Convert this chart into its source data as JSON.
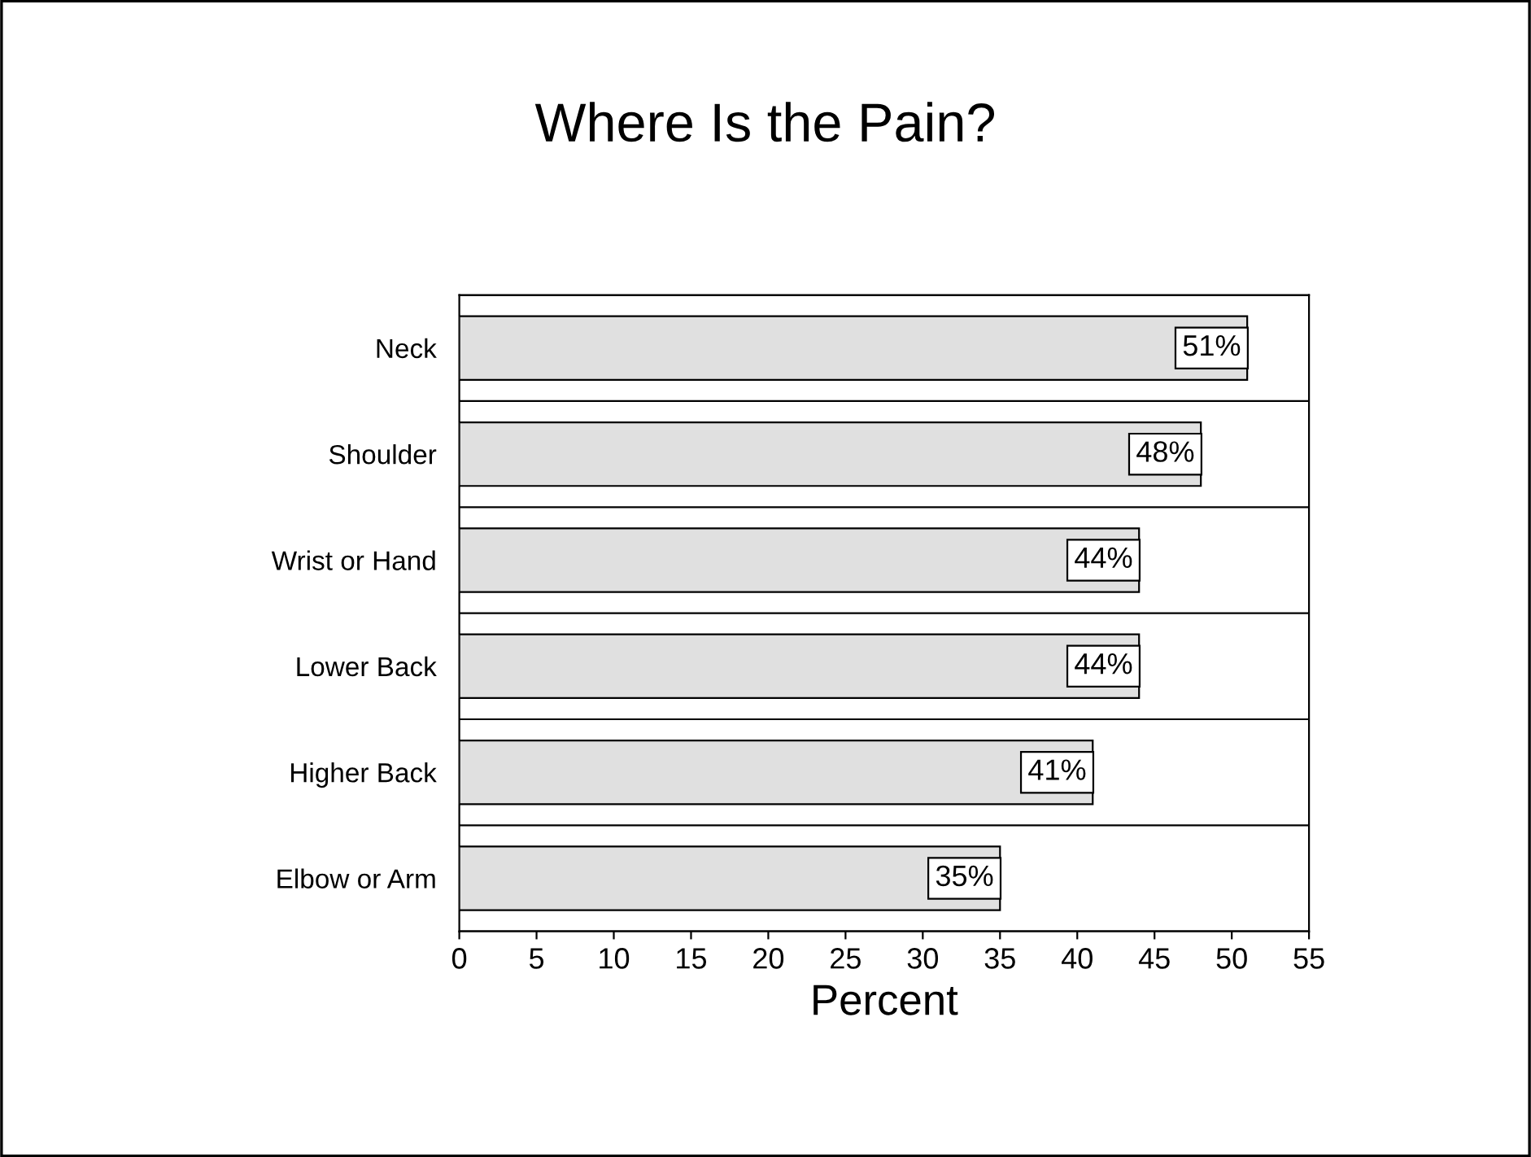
{
  "chart_data": {
    "type": "bar",
    "orientation": "horizontal",
    "title": "Where Is the Pain?",
    "xlabel": "Percent",
    "categories": [
      "Neck",
      "Shoulder",
      "Wrist or Hand",
      "Lower Back",
      "Higher Back",
      "Elbow or Arm"
    ],
    "values": [
      51,
      48,
      44,
      44,
      41,
      35
    ],
    "value_labels": [
      "51%",
      "48%",
      "44%",
      "44%",
      "41%",
      "35%"
    ],
    "color": "#e0e0e0",
    "xlim": [
      0,
      55
    ],
    "xticks": [
      0,
      5,
      10,
      15,
      20,
      25,
      30,
      35,
      40,
      45,
      50,
      55
    ],
    "grid": "y",
    "legend": false
  }
}
